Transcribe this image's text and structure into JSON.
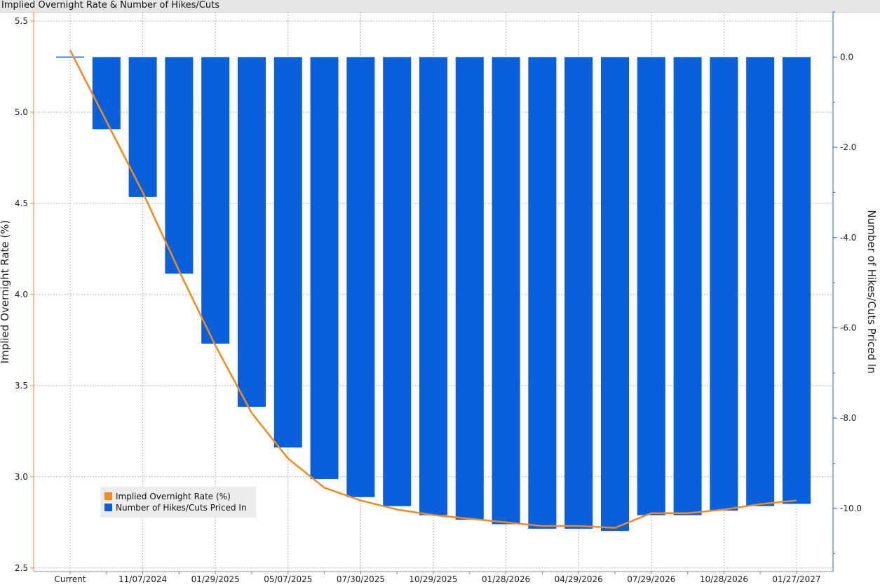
{
  "header": {
    "title": "Implied Overnight Rate & Number of Hikes/Cuts"
  },
  "colors": {
    "bars": "#0a5fdb",
    "line": "#f28a1c",
    "left_axis": "#f28a1c",
    "right_axis": "#1f6fbf",
    "grid": "#b5b5b5"
  },
  "chart_data": {
    "type": "bar",
    "title": "Implied Overnight Rate & Number of Hikes/Cuts",
    "categories": [
      "Current",
      "",
      "11/07/2024",
      "",
      "01/29/2025",
      "",
      "05/07/2025",
      "",
      "07/30/2025",
      "",
      "10/29/2025",
      "",
      "01/28/2026",
      "",
      "04/29/2026",
      "",
      "07/29/2026",
      "",
      "10/28/2026",
      "",
      "01/27/2027"
    ],
    "x_tick_labels": [
      "Current",
      "11/07/2024",
      "01/29/2025",
      "05/07/2025",
      "07/30/2025",
      "10/29/2025",
      "01/28/2026",
      "04/29/2026",
      "07/29/2026",
      "10/28/2026",
      "01/27/2027"
    ],
    "series": [
      {
        "name": "Number of Hikes/Cuts Priced In",
        "type": "bar",
        "axis": "right",
        "values": [
          0.0,
          -1.6,
          -3.1,
          -4.8,
          -6.35,
          -7.75,
          -8.65,
          -9.35,
          -9.75,
          -9.95,
          -10.15,
          -10.25,
          -10.35,
          -10.45,
          -10.45,
          -10.5,
          -10.15,
          -10.15,
          -10.05,
          -9.95,
          -9.9
        ]
      },
      {
        "name": "Implied Overnight Rate (%)",
        "type": "line",
        "axis": "left",
        "values": [
          5.34,
          4.95,
          4.56,
          4.13,
          3.72,
          3.35,
          3.1,
          2.94,
          2.87,
          2.82,
          2.79,
          2.77,
          2.75,
          2.73,
          2.73,
          2.72,
          2.8,
          2.8,
          2.82,
          2.85,
          2.87
        ]
      }
    ],
    "ylabel_left": "Implied Overnight Rate (%)",
    "ylabel_right": "Number of Hikes/Cuts Priced In",
    "ylim_left": [
      2.48,
      5.55
    ],
    "yticks_left": [
      "2.5",
      "3.0",
      "3.5",
      "4.0",
      "4.5",
      "5.0",
      "5.5"
    ],
    "ylim_right": [
      -11.4,
      1.0
    ],
    "yticks_right": [
      "0.0",
      "-2.0",
      "-4.0",
      "-6.0",
      "-8.0",
      "-10.0"
    ],
    "legend": {
      "position": "bottom-left",
      "entries": [
        "Implied Overnight Rate (%)",
        "Number of Hikes/Cuts Priced In"
      ]
    },
    "grid": true
  }
}
